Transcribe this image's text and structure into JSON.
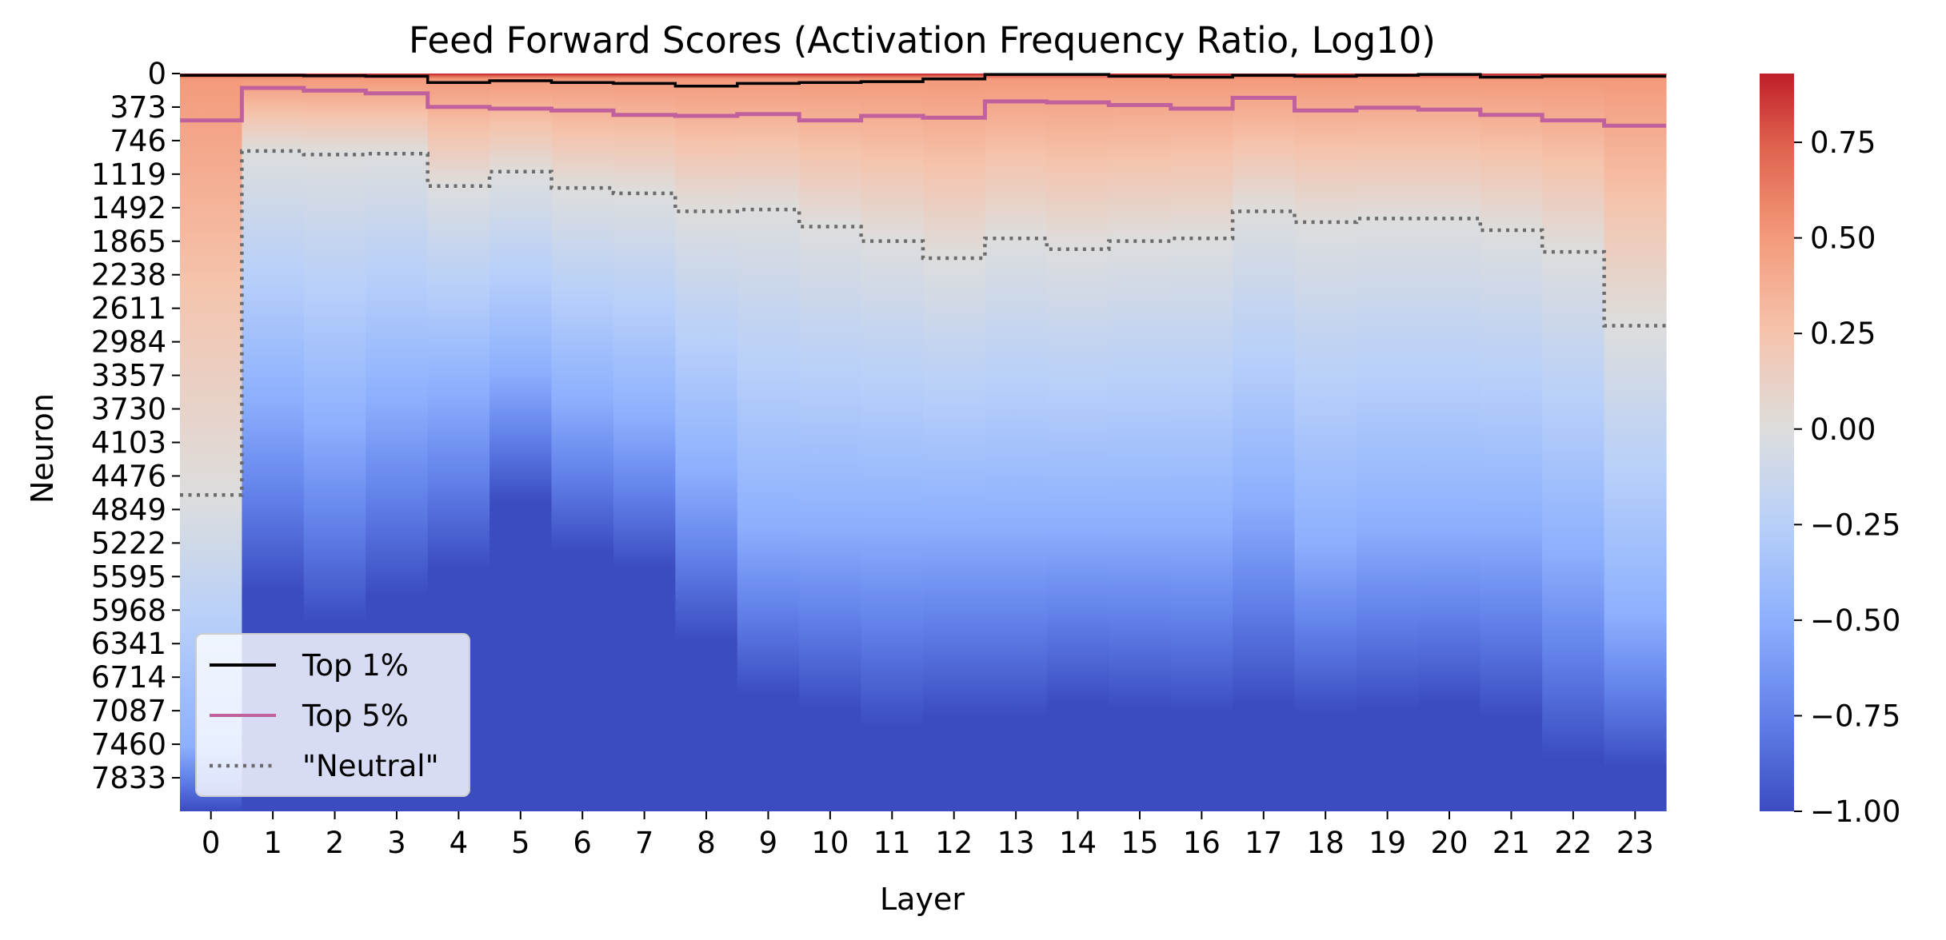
{
  "chart_data": {
    "type": "heatmap",
    "title": "Feed Forward Scores (Activation Frequency Ratio, Log10)",
    "xlabel": "Layer",
    "ylabel": "Neuron",
    "x_ticks": [
      "0",
      "1",
      "2",
      "3",
      "4",
      "5",
      "6",
      "7",
      "8",
      "9",
      "10",
      "11",
      "12",
      "13",
      "14",
      "15",
      "16",
      "17",
      "18",
      "19",
      "20",
      "21",
      "22",
      "23"
    ],
    "y_ticks": [
      "0",
      "373",
      "746",
      "1119",
      "1492",
      "1865",
      "2238",
      "2611",
      "2984",
      "3357",
      "3730",
      "4103",
      "4476",
      "4849",
      "5222",
      "5595",
      "5968",
      "6341",
      "6714",
      "7087",
      "7460",
      "7833"
    ],
    "neuron_count": 8192,
    "colorbar": {
      "colormap": "coolwarm",
      "range": [
        -1.0,
        0.93
      ],
      "ticks": [
        0.75,
        0.5,
        0.25,
        0.0,
        -0.25,
        -0.5,
        -0.75,
        -1.0
      ],
      "tick_labels": [
        "0.75",
        "0.50",
        "0.25",
        "0.00",
        "−0.25",
        "−0.50",
        "−0.75",
        "−1.00"
      ]
    },
    "column_profile": {
      "description": "values sorted descending per layer; value reaches this neuron index at each level",
      "levels": [
        0.93,
        0.5,
        0.0,
        -0.5,
        -1.0
      ],
      "by_layer": [
        [
          0,
          60,
          4680,
          7460,
          8192
        ],
        [
          0,
          60,
          860,
          3600,
          5750
        ],
        [
          0,
          60,
          880,
          3900,
          6100
        ],
        [
          0,
          60,
          880,
          3600,
          5800
        ],
        [
          0,
          60,
          1250,
          3500,
          5500
        ],
        [
          0,
          60,
          1100,
          3300,
          4750
        ],
        [
          0,
          60,
          1280,
          3600,
          5300
        ],
        [
          0,
          60,
          1320,
          3800,
          5500
        ],
        [
          0,
          60,
          1530,
          4400,
          6300
        ],
        [
          0,
          60,
          1500,
          5000,
          6900
        ],
        [
          0,
          60,
          1700,
          5000,
          7050
        ],
        [
          0,
          60,
          1850,
          5000,
          7250
        ],
        [
          0,
          60,
          2050,
          5000,
          7150
        ],
        [
          0,
          60,
          1820,
          5000,
          7150
        ],
        [
          0,
          60,
          1930,
          5000,
          7000
        ],
        [
          0,
          60,
          1850,
          5000,
          7050
        ],
        [
          0,
          60,
          1820,
          5000,
          7100
        ],
        [
          0,
          60,
          1530,
          4700,
          7000
        ],
        [
          0,
          60,
          1660,
          5200,
          7100
        ],
        [
          0,
          60,
          1620,
          5000,
          7050
        ],
        [
          0,
          60,
          1620,
          5000,
          7000
        ],
        [
          0,
          60,
          1750,
          5000,
          7150
        ],
        [
          0,
          60,
          1980,
          5300,
          7600
        ],
        [
          0,
          60,
          2800,
          6000,
          7700
        ]
      ]
    },
    "series": [
      {
        "name": "Top 1%",
        "color": "#000000",
        "style": "solid",
        "values": [
          20,
          20,
          25,
          30,
          100,
          80,
          100,
          110,
          140,
          110,
          100,
          90,
          60,
          10,
          10,
          30,
          40,
          20,
          30,
          20,
          10,
          40,
          30,
          30
        ]
      },
      {
        "name": "Top 5%",
        "color": "#c0609c",
        "style": "solid",
        "values": [
          520,
          160,
          190,
          220,
          370,
          390,
          410,
          460,
          470,
          450,
          520,
          470,
          490,
          310,
          320,
          350,
          390,
          270,
          410,
          380,
          400,
          460,
          520,
          580
        ]
      },
      {
        "name": "\"Neutral\"",
        "color": "#6b6b6b",
        "style": "dotted",
        "values": [
          4680,
          860,
          900,
          890,
          1250,
          1090,
          1270,
          1330,
          1530,
          1510,
          1700,
          1860,
          2050,
          1830,
          1950,
          1860,
          1830,
          1530,
          1650,
          1610,
          1610,
          1740,
          1980,
          2800
        ]
      }
    ],
    "legend_location": "lower left"
  }
}
